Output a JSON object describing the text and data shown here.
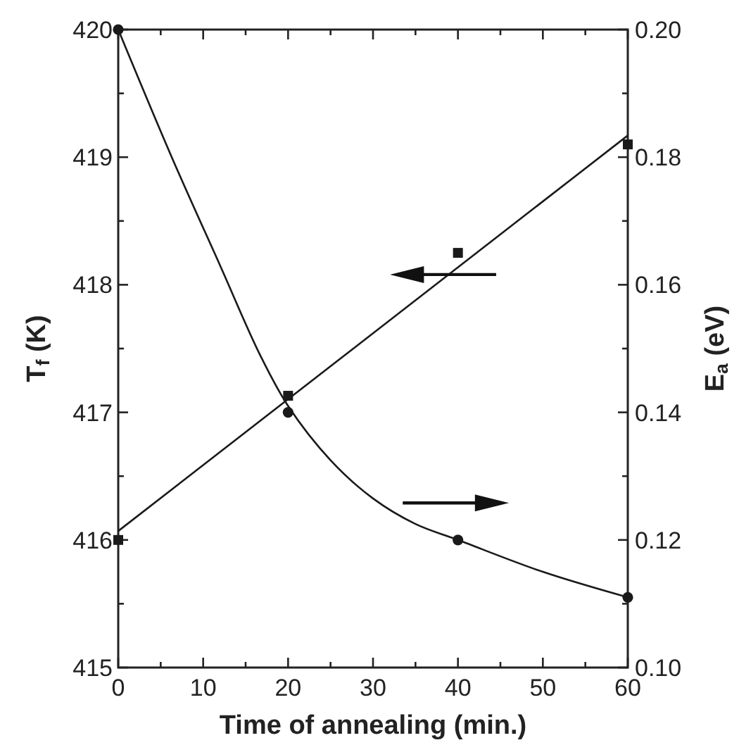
{
  "chart_data": {
    "type": "scatter",
    "xlabel": "Time of annealing (min.)",
    "ylabel": "T$_{f}$ (K)",
    "y2label": "E$_{a}$ (eV)",
    "xlim": [
      0,
      60
    ],
    "xticks": [
      0,
      {
        "value": 5,
        "label": null
      },
      10,
      {
        "value": 15,
        "label": null
      },
      20,
      {
        "value": 25,
        "label": null
      },
      30,
      {
        "value": 35,
        "label": null
      },
      40,
      {
        "value": 45,
        "label": null
      },
      50,
      {
        "value": 55,
        "label": null
      },
      60
    ],
    "ylim": [
      415,
      420
    ],
    "yticks": [
      415,
      {
        "value": 415.5,
        "label": null
      },
      416,
      {
        "value": 416.5,
        "label": null
      },
      417,
      {
        "value": 417.5,
        "label": null
      },
      418,
      {
        "value": 418.5,
        "label": null
      },
      419,
      {
        "value": 419.5,
        "label": null
      },
      420
    ],
    "y2lim": [
      0.1,
      0.2
    ],
    "y2ticks": [
      {
        "value": 0.1,
        "label": "0.10"
      },
      {
        "value": 0.11,
        "label": null
      },
      {
        "value": 0.12,
        "label": "0.12"
      },
      {
        "value": 0.13,
        "label": null
      },
      {
        "value": 0.14,
        "label": "0.14"
      },
      {
        "value": 0.15,
        "label": null
      },
      {
        "value": 0.16,
        "label": "0.16"
      },
      {
        "value": 0.17,
        "label": null
      },
      {
        "value": 0.18,
        "label": "0.18"
      },
      {
        "value": 0.19,
        "label": null
      },
      {
        "value": 0.2,
        "label": "0.20"
      }
    ],
    "x": [
      0,
      20,
      40,
      60
    ],
    "series": [
      {
        "color": "#1a1a1a",
        "marker": "square",
        "values": [
          416.0,
          417.13,
          418.25,
          419.1
        ]
      },
      {
        "type": "line",
        "color": "#1a1a1a",
        "marker": "none",
        "x": [
          0,
          60
        ],
        "values": [
          416.07,
          419.17
        ]
      },
      {
        "axis": "y2",
        "color": "#1a1a1a",
        "marker": "circle",
        "values": [
          0.2,
          0.14,
          0.12,
          0.111
        ]
      },
      {
        "type": "line",
        "axis": "y2",
        "color": "#1a1a1a",
        "marker": "none",
        "x": [
          0,
          6.3,
          12,
          16.7,
          20,
          25,
          30,
          35,
          40,
          50,
          60
        ],
        "values": [
          0.2,
          0.18,
          0.163,
          0.149,
          0.141,
          0.1325,
          0.1265,
          0.1225,
          0.12,
          0.115,
          0.111
        ]
      }
    ],
    "grid": false
  }
}
